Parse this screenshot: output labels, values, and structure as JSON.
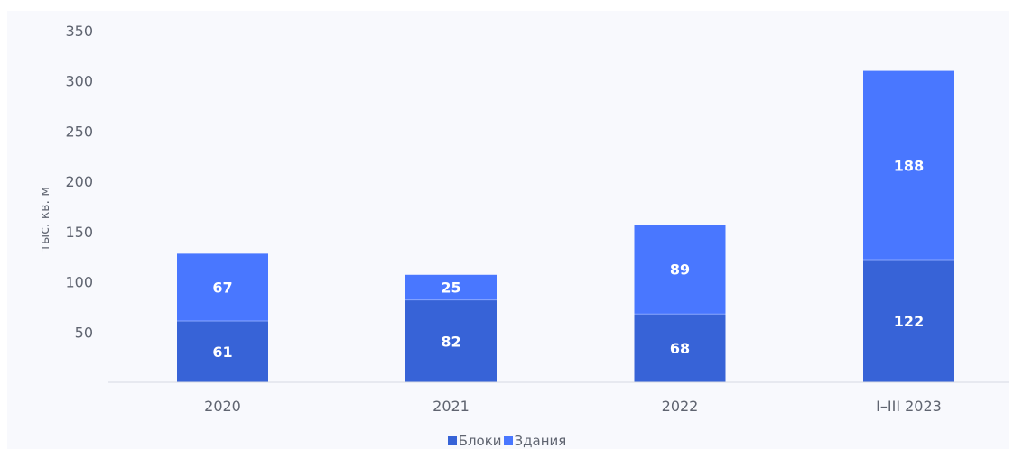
{
  "chart_data": {
    "type": "bar",
    "stacked": true,
    "categories": [
      "2020",
      "2021",
      "2022",
      "I–III 2023"
    ],
    "series": [
      {
        "name": "Блоки",
        "values": [
          61,
          82,
          68,
          122
        ],
        "color": "#3763d7"
      },
      {
        "name": "Здания",
        "values": [
          67,
          25,
          89,
          188
        ],
        "color": "#4977ff"
      }
    ],
    "title": "",
    "xlabel": "",
    "ylabel": "тыс. кв. м",
    "ylim": [
      0,
      350
    ],
    "yticks": [
      50,
      100,
      150,
      200,
      250,
      300,
      350
    ],
    "grid": false,
    "legend_position": "bottom-center",
    "data_labels": true
  }
}
